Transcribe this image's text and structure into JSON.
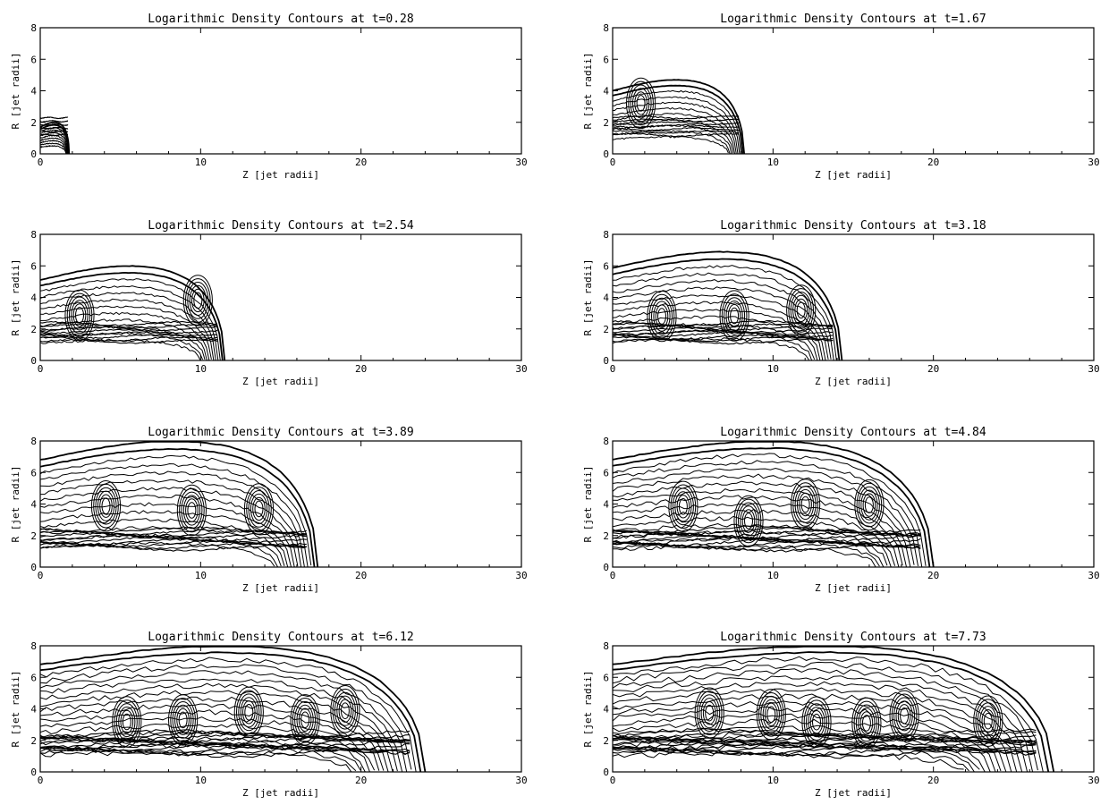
{
  "figure": {
    "xlabel": "Z [jet radii]",
    "ylabel": "R [jet radii]",
    "xlim": [
      0,
      30
    ],
    "ylim": [
      0,
      8
    ],
    "xticks": [
      "0",
      "10",
      "20",
      "30"
    ],
    "yticks": [
      "0",
      "2",
      "4",
      "6",
      "8"
    ],
    "line_color": "#000000",
    "background": "#ffffff"
  },
  "chart_data": [
    {
      "type": "contour",
      "title": "Logarithmic Density Contours at t=0.28",
      "t": 0.28,
      "front_z": 1.8,
      "max_r": 2.0,
      "complexity": 0.15,
      "xlabel": "Z [jet radii]",
      "ylabel": "R [jet radii]",
      "xlim": [
        0,
        30
      ],
      "ylim": [
        0,
        8
      ]
    },
    {
      "type": "contour",
      "title": "Logarithmic Density Contours at t=1.67",
      "t": 1.67,
      "front_z": 8.2,
      "max_r": 4.7,
      "complexity": 0.3,
      "xlabel": "Z [jet radii]",
      "ylabel": "R [jet radii]",
      "xlim": [
        0,
        30
      ],
      "ylim": [
        0,
        8
      ]
    },
    {
      "type": "contour",
      "title": "Logarithmic Density Contours at t=2.54",
      "t": 2.54,
      "front_z": 11.5,
      "max_r": 6.0,
      "complexity": 0.4,
      "xlabel": "Z [jet radii]",
      "ylabel": "R [jet radii]",
      "xlim": [
        0,
        30
      ],
      "ylim": [
        0,
        8
      ]
    },
    {
      "type": "contour",
      "title": "Logarithmic Density Contours at t=3.18",
      "t": 3.18,
      "front_z": 14.3,
      "max_r": 6.9,
      "complexity": 0.5,
      "xlabel": "Z [jet radii]",
      "ylabel": "R [jet radii]",
      "xlim": [
        0,
        30
      ],
      "ylim": [
        0,
        8
      ]
    },
    {
      "type": "contour",
      "title": "Logarithmic Density Contours at t=3.89",
      "t": 3.89,
      "front_z": 17.3,
      "max_r": 8.0,
      "complexity": 0.6,
      "xlabel": "Z [jet radii]",
      "ylabel": "R [jet radii]",
      "xlim": [
        0,
        30
      ],
      "ylim": [
        0,
        8
      ]
    },
    {
      "type": "contour",
      "title": "Logarithmic Density Contours at t=4.84",
      "t": 4.84,
      "front_z": 20.0,
      "max_r": 8.0,
      "complexity": 0.75,
      "xlabel": "Z [jet radii]",
      "ylabel": "R [jet radii]",
      "xlim": [
        0,
        30
      ],
      "ylim": [
        0,
        8
      ]
    },
    {
      "type": "contour",
      "title": "Logarithmic Density Contours at t=6.12",
      "t": 6.12,
      "front_z": 24.0,
      "max_r": 8.0,
      "complexity": 0.9,
      "xlabel": "Z [jet radii]",
      "ylabel": "R [jet radii]",
      "xlim": [
        0,
        30
      ],
      "ylim": [
        0,
        8
      ]
    },
    {
      "type": "contour",
      "title": "Logarithmic Density Contours at t=7.73",
      "t": 7.73,
      "front_z": 27.5,
      "max_r": 8.0,
      "complexity": 1.0,
      "xlabel": "Z [jet radii]",
      "ylabel": "R [jet radii]",
      "xlim": [
        0,
        30
      ],
      "ylim": [
        0,
        8
      ]
    }
  ]
}
